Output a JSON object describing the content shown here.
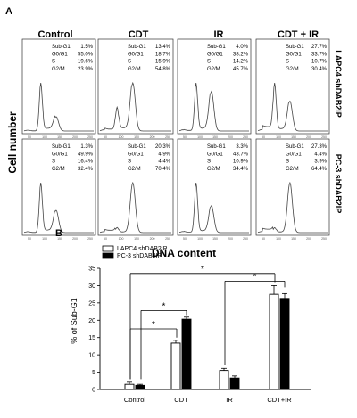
{
  "panel_a": {
    "label": "A",
    "y_axis_label": "Cell number",
    "x_axis_label": "DNA content",
    "columns": [
      "Control",
      "CDT",
      "IR",
      "CDT + IR"
    ],
    "rows": [
      {
        "name": "LAPC4 shDAB2IP",
        "histograms": [
          {
            "condition": "Control",
            "stats": [
              [
                "Sub-G1",
                "1.5%"
              ],
              [
                "G0/G1",
                "55.0%"
              ],
              [
                "S",
                "19.6%"
              ],
              [
                "G2/M",
                "23.9%"
              ]
            ]
          },
          {
            "condition": "CDT",
            "stats": [
              [
                "Sub-G1",
                "13.4%"
              ],
              [
                "G0/G1",
                "18.7%"
              ],
              [
                "S",
                "15.9%"
              ],
              [
                "G2/M",
                "54.8%"
              ]
            ]
          },
          {
            "condition": "IR",
            "stats": [
              [
                "Sub-G1",
                "4.0%"
              ],
              [
                "G0/G1",
                "38.2%"
              ],
              [
                "S",
                "14.2%"
              ],
              [
                "G2/M",
                "45.7%"
              ]
            ]
          },
          {
            "condition": "CDT + IR",
            "stats": [
              [
                "Sub-G1",
                "27.7%"
              ],
              [
                "G0/G1",
                "33.7%"
              ],
              [
                "S",
                "10.7%"
              ],
              [
                "G2/M",
                "30.4%"
              ]
            ]
          }
        ]
      },
      {
        "name": "PC-3 shDAB2IP",
        "histograms": [
          {
            "condition": "Control",
            "stats": [
              [
                "Sub-G1",
                "1.3%"
              ],
              [
                "G0/G1",
                "49.9%"
              ],
              [
                "S",
                "16.4%"
              ],
              [
                "G2/M",
                "32.4%"
              ]
            ]
          },
          {
            "condition": "CDT",
            "stats": [
              [
                "Sub-G1",
                "20.3%"
              ],
              [
                "G0/G1",
                "4.9%"
              ],
              [
                "S",
                "4.4%"
              ],
              [
                "G2/M",
                "70.4%"
              ]
            ]
          },
          {
            "condition": "IR",
            "stats": [
              [
                "Sub-G1",
                "3.3%"
              ],
              [
                "G0/G1",
                "43.7%"
              ],
              [
                "S",
                "10.9%"
              ],
              [
                "G2/M",
                "34.4%"
              ]
            ]
          },
          {
            "condition": "CDT + IR",
            "stats": [
              [
                "Sub-G1",
                "27.3%"
              ],
              [
                "G0/G1",
                "4.4%"
              ],
              [
                "S",
                "3.9%"
              ],
              [
                "G2/M",
                "64.4%"
              ]
            ]
          }
        ]
      }
    ],
    "histogram_x_ticks": [
      "50",
      "100",
      "150",
      "200",
      "250"
    ]
  },
  "panel_b": {
    "label": "B"
  },
  "chart_data": {
    "type": "bar",
    "title": "",
    "xlabel": "",
    "ylabel": "% of Sub-G1",
    "categories": [
      "Control",
      "CDT",
      "IR",
      "CDT+IR"
    ],
    "series": [
      {
        "name": "LAPC4 shDAB2IP",
        "values": [
          1.5,
          13.4,
          5.5,
          27.5
        ],
        "errors": [
          0.6,
          0.8,
          0.6,
          2.5
        ],
        "color": "#ffffff"
      },
      {
        "name": "PC-3 shDAB2IP",
        "values": [
          1.2,
          20.3,
          3.3,
          26.3
        ],
        "errors": [
          0.3,
          0.6,
          0.6,
          1.4
        ],
        "color": "#000000"
      }
    ],
    "ylim": [
      0,
      35
    ],
    "yticks": [
      0,
      5,
      10,
      15,
      20,
      25,
      30,
      35
    ],
    "legend": "top-left",
    "significance": [
      {
        "from": "Control",
        "to": "CDT",
        "label": "*"
      },
      {
        "from": "CDT",
        "to": "CDT",
        "label": "*"
      },
      {
        "from": "Control",
        "to": "CDT+IR",
        "label": "*"
      },
      {
        "from": "IR",
        "to": "CDT+IR",
        "label": "*"
      }
    ]
  }
}
